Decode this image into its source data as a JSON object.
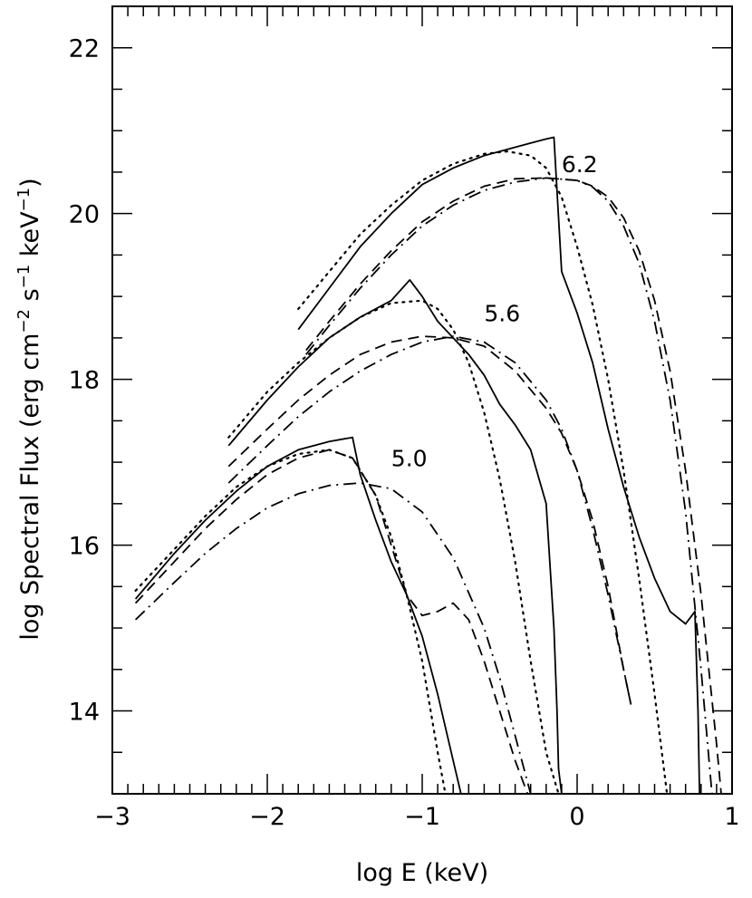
{
  "chart_data": {
    "type": "line",
    "title": "",
    "xlabel": "log E (keV)",
    "ylabel_parts": [
      "log Spectral Flux (erg cm",
      "−2",
      " s",
      "−1",
      " keV",
      "−1",
      ")"
    ],
    "xlim": [
      -3,
      1
    ],
    "ylim": [
      13,
      22.5
    ],
    "x_ticks": [
      -3,
      -2,
      -1,
      0,
      1
    ],
    "x_tick_labels": [
      "−3",
      "−2",
      "−1",
      "0",
      "1"
    ],
    "y_ticks": [
      14,
      16,
      18,
      20,
      22
    ],
    "y_tick_labels": [
      "14",
      "16",
      "18",
      "20",
      "22"
    ],
    "grid": false,
    "series": [
      {
        "name": "6.2 solid",
        "group": "6.2",
        "style": "solid",
        "x": [
          -1.8,
          -1.6,
          -1.4,
          -1.2,
          -1.0,
          -0.8,
          -0.6,
          -0.5,
          -0.4,
          -0.3,
          -0.2,
          -0.15,
          -0.1,
          0.0,
          0.1,
          0.2,
          0.3,
          0.4,
          0.5,
          0.6,
          0.7,
          0.76,
          0.78,
          0.79
        ],
        "y": [
          18.6,
          19.1,
          19.6,
          20.0,
          20.35,
          20.55,
          20.7,
          20.75,
          20.8,
          20.85,
          20.9,
          20.92,
          19.3,
          18.8,
          18.2,
          17.4,
          16.7,
          16.1,
          15.6,
          15.2,
          15.05,
          15.2,
          14.0,
          13.0
        ]
      },
      {
        "name": "6.2 dotted",
        "group": "6.2",
        "style": "dotted",
        "x": [
          -1.8,
          -1.6,
          -1.4,
          -1.2,
          -1.0,
          -0.8,
          -0.6,
          -0.45,
          -0.3,
          -0.2,
          -0.1,
          0.0,
          0.1,
          0.2,
          0.3,
          0.4,
          0.5,
          0.58
        ],
        "y": [
          18.85,
          19.3,
          19.75,
          20.1,
          20.4,
          20.6,
          20.72,
          20.75,
          20.7,
          20.55,
          20.2,
          19.6,
          18.9,
          18.0,
          16.9,
          15.6,
          14.2,
          13.0
        ]
      },
      {
        "name": "6.2 dashed",
        "group": "6.2",
        "style": "dashed",
        "x": [
          -1.75,
          -1.6,
          -1.4,
          -1.2,
          -1.0,
          -0.8,
          -0.6,
          -0.4,
          -0.2,
          0.0,
          0.1,
          0.2,
          0.3,
          0.4,
          0.5,
          0.6,
          0.7,
          0.8,
          0.9,
          0.93
        ],
        "y": [
          18.35,
          18.7,
          19.15,
          19.55,
          19.9,
          20.15,
          20.33,
          20.42,
          20.43,
          20.4,
          20.33,
          20.2,
          19.95,
          19.55,
          18.95,
          18.1,
          16.9,
          15.4,
          13.6,
          13.0
        ]
      },
      {
        "name": "6.2 dash-dot",
        "group": "6.2",
        "style": "dashdot",
        "x": [
          -1.75,
          -1.6,
          -1.4,
          -1.2,
          -1.0,
          -0.8,
          -0.6,
          -0.4,
          -0.2,
          0.0,
          0.1,
          0.2,
          0.3,
          0.4,
          0.5,
          0.6,
          0.7,
          0.8,
          0.87
        ],
        "y": [
          18.3,
          18.65,
          19.1,
          19.5,
          19.85,
          20.1,
          20.28,
          20.38,
          20.43,
          20.4,
          20.32,
          20.15,
          19.85,
          19.4,
          18.7,
          17.75,
          16.4,
          14.5,
          13.0
        ]
      },
      {
        "name": "5.6 solid",
        "group": "5.6",
        "style": "solid",
        "x": [
          -2.25,
          -2.0,
          -1.8,
          -1.6,
          -1.4,
          -1.2,
          -1.08,
          -1.0,
          -0.9,
          -0.8,
          -0.7,
          -0.6,
          -0.5,
          -0.4,
          -0.3,
          -0.2,
          -0.15,
          -0.13,
          -0.12,
          -0.1
        ],
        "y": [
          17.2,
          17.75,
          18.15,
          18.5,
          18.75,
          18.95,
          19.2,
          19.0,
          18.7,
          18.5,
          18.3,
          18.05,
          17.7,
          17.45,
          17.15,
          16.5,
          15.0,
          14.0,
          13.3,
          13.0
        ]
      },
      {
        "name": "5.6 dotted",
        "group": "5.6",
        "style": "dotted",
        "x": [
          -2.25,
          -2.0,
          -1.8,
          -1.6,
          -1.4,
          -1.2,
          -1.0,
          -0.9,
          -0.8,
          -0.7,
          -0.6,
          -0.5,
          -0.4,
          -0.3,
          -0.2,
          -0.12
        ],
        "y": [
          17.3,
          17.85,
          18.2,
          18.5,
          18.75,
          18.92,
          18.95,
          18.85,
          18.6,
          18.2,
          17.6,
          16.8,
          15.8,
          14.6,
          13.5,
          13.0
        ]
      },
      {
        "name": "5.6 dashed",
        "group": "5.6",
        "style": "dashed",
        "x": [
          -2.25,
          -2.0,
          -1.8,
          -1.6,
          -1.4,
          -1.2,
          -1.0,
          -0.8,
          -0.6,
          -0.4,
          -0.2,
          -0.1,
          0.0,
          0.1,
          0.2,
          0.3,
          0.35
        ],
        "y": [
          16.95,
          17.4,
          17.75,
          18.05,
          18.3,
          18.45,
          18.52,
          18.5,
          18.4,
          18.1,
          17.65,
          17.35,
          16.9,
          16.3,
          15.5,
          14.5,
          14.05
        ]
      },
      {
        "name": "5.6 dash-dot",
        "group": "5.6",
        "style": "dashdot",
        "x": [
          -2.25,
          -2.0,
          -1.8,
          -1.6,
          -1.4,
          -1.2,
          -1.0,
          -0.8,
          -0.6,
          -0.4,
          -0.2,
          -0.1,
          0.0,
          0.1,
          0.2,
          0.3,
          0.35
        ],
        "y": [
          16.75,
          17.2,
          17.55,
          17.85,
          18.1,
          18.3,
          18.45,
          18.52,
          18.45,
          18.2,
          17.75,
          17.4,
          16.9,
          16.2,
          15.4,
          14.5,
          14.05
        ]
      },
      {
        "name": "5.0 solid",
        "group": "5.0",
        "style": "solid",
        "x": [
          -2.85,
          -2.6,
          -2.4,
          -2.2,
          -2.0,
          -1.8,
          -1.6,
          -1.45,
          -1.4,
          -1.3,
          -1.2,
          -1.1,
          -1.0,
          -0.9,
          -0.8,
          -0.75
        ],
        "y": [
          15.35,
          15.9,
          16.3,
          16.65,
          16.95,
          17.15,
          17.25,
          17.3,
          16.85,
          16.3,
          15.8,
          15.4,
          14.9,
          14.2,
          13.4,
          13.0
        ]
      },
      {
        "name": "5.0 dotted",
        "group": "5.0",
        "style": "dotted",
        "x": [
          -2.85,
          -2.6,
          -2.4,
          -2.2,
          -2.0,
          -1.8,
          -1.6,
          -1.45,
          -1.3,
          -1.2,
          -1.1,
          -1.0,
          -0.9,
          -0.85
        ],
        "y": [
          15.45,
          15.95,
          16.35,
          16.7,
          16.95,
          17.1,
          17.15,
          17.05,
          16.6,
          16.1,
          15.4,
          14.6,
          13.5,
          13.0
        ]
      },
      {
        "name": "5.0 dashed",
        "group": "5.0",
        "style": "dashed",
        "x": [
          -2.85,
          -2.6,
          -2.4,
          -2.2,
          -2.0,
          -1.8,
          -1.6,
          -1.45,
          -1.3,
          -1.2,
          -1.1,
          -1.0,
          -0.9,
          -0.8,
          -0.7,
          -0.6,
          -0.5,
          -0.4,
          -0.32
        ],
        "y": [
          15.3,
          15.8,
          16.2,
          16.55,
          16.85,
          17.05,
          17.15,
          17.05,
          16.6,
          16.0,
          15.4,
          15.15,
          15.2,
          15.3,
          15.1,
          14.6,
          14.0,
          13.4,
          13.0
        ]
      },
      {
        "name": "5.0 dash-dot",
        "group": "5.0",
        "style": "dashdot",
        "x": [
          -2.85,
          -2.6,
          -2.4,
          -2.2,
          -2.0,
          -1.8,
          -1.6,
          -1.4,
          -1.2,
          -1.0,
          -0.8,
          -0.6,
          -0.5,
          -0.4,
          -0.3
        ],
        "y": [
          15.1,
          15.55,
          15.9,
          16.2,
          16.45,
          16.62,
          16.72,
          16.75,
          16.68,
          16.4,
          15.85,
          15.0,
          14.4,
          13.7,
          13.0
        ]
      }
    ],
    "annotations": [
      {
        "text": "6.2",
        "x": -0.1,
        "y": 20.5
      },
      {
        "text": "5.6",
        "x": -0.6,
        "y": 18.7
      },
      {
        "text": "5.0",
        "x": -1.2,
        "y": 16.95
      }
    ]
  }
}
